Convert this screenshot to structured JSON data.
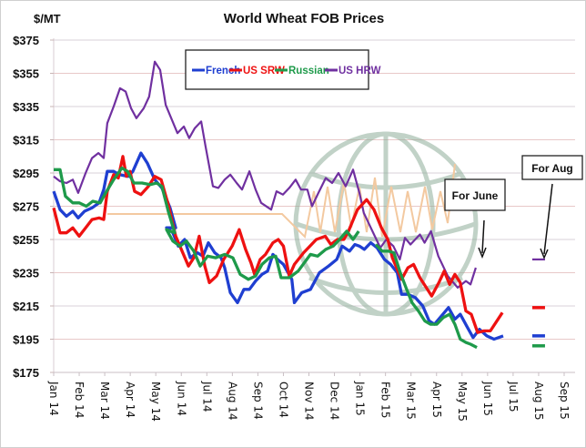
{
  "chart_data": {
    "type": "line",
    "title": "World Wheat FOB Prices",
    "ylabel": "$/MT",
    "xlabel": "",
    "ylim": [
      175,
      375
    ],
    "yticks": [
      175,
      195,
      215,
      235,
      255,
      275,
      295,
      315,
      335,
      355,
      375
    ],
    "ytick_labels": [
      "$175",
      "$195",
      "$215",
      "$235",
      "$255",
      "$275",
      "$295",
      "$315",
      "$335",
      "$355",
      "$375"
    ],
    "x_unit": "months since Jan 14",
    "xlim": [
      0,
      20
    ],
    "xtick_labels": [
      "Jan 14",
      "Feb 14",
      "Mar 14",
      "Apr 14",
      "May 14",
      "Jun 14",
      "Jul 14",
      "Aug 14",
      "Sep 14",
      "Oct 14",
      "Nov 14",
      "Dec 14",
      "Jan 15",
      "Feb 15",
      "Mar 15",
      "Apr 15",
      "May 15",
      "Jun 15",
      "Jul 15",
      "Aug 15",
      "Sep 15"
    ],
    "grid": true,
    "legend": {
      "placement": "top-center",
      "boxed": true
    },
    "series": [
      {
        "name": "French",
        "color": "#1f3fd1",
        "points": [
          [
            0,
            284
          ],
          [
            0.25,
            273
          ],
          [
            0.5,
            269
          ],
          [
            0.75,
            272
          ],
          [
            0.96,
            268
          ],
          [
            1.21,
            272
          ],
          [
            1.5,
            274
          ],
          [
            1.78,
            277
          ],
          [
            1.96,
            285
          ],
          [
            2.1,
            296
          ],
          [
            2.35,
            296
          ],
          [
            2.57,
            294
          ],
          [
            2.92,
            293
          ],
          [
            3.1,
            296
          ],
          [
            3.42,
            307
          ],
          [
            3.67,
            301
          ],
          [
            3.96,
            291
          ],
          [
            4.24,
            286
          ],
          [
            4.56,
            274
          ],
          [
            4.78,
            262
          ],
          [
            4.42,
            262
          ],
          [
            4.67,
            259
          ],
          [
            4.88,
            251
          ],
          [
            5.13,
            255
          ],
          [
            5.35,
            244
          ],
          [
            5.63,
            247
          ],
          [
            5.85,
            245
          ],
          [
            6.06,
            253
          ],
          [
            6.31,
            247
          ],
          [
            6.56,
            244
          ],
          [
            6.7,
            238
          ],
          [
            6.92,
            223
          ],
          [
            7.2,
            217
          ],
          [
            7.45,
            225
          ],
          [
            7.67,
            225
          ],
          [
            7.91,
            230
          ],
          [
            8.16,
            234
          ],
          [
            8.38,
            236
          ],
          [
            8.59,
            246
          ],
          [
            8.77,
            243
          ],
          [
            9.0,
            240
          ],
          [
            9.33,
            231
          ],
          [
            9.43,
            217
          ],
          [
            9.72,
            223
          ],
          [
            10.06,
            225
          ],
          [
            10.41,
            235
          ],
          [
            10.77,
            239
          ],
          [
            11.09,
            243
          ],
          [
            11.3,
            251
          ],
          [
            11.59,
            248
          ],
          [
            11.8,
            252
          ],
          [
            11.98,
            251
          ],
          [
            12.17,
            249
          ],
          [
            12.42,
            253
          ],
          [
            12.67,
            250
          ],
          [
            12.96,
            243
          ],
          [
            13.2,
            240
          ],
          [
            13.46,
            235
          ],
          [
            13.63,
            222
          ],
          [
            13.88,
            222
          ],
          [
            14.17,
            220
          ],
          [
            14.46,
            215
          ],
          [
            14.71,
            206
          ],
          [
            14.92,
            204
          ],
          [
            15.47,
            214
          ],
          [
            15.72,
            207
          ],
          [
            15.93,
            210
          ],
          [
            16.18,
            203
          ],
          [
            16.43,
            196
          ],
          [
            16.68,
            201
          ],
          [
            16.97,
            197
          ],
          [
            17.25,
            195
          ],
          [
            17.61,
            197
          ]
        ]
      },
      {
        "name": "US SRW",
        "color": "#ee1111",
        "points": [
          [
            0,
            274
          ],
          [
            0.25,
            259
          ],
          [
            0.5,
            259
          ],
          [
            0.75,
            262
          ],
          [
            1.0,
            257
          ],
          [
            1.25,
            262
          ],
          [
            1.5,
            267
          ],
          [
            1.78,
            268
          ],
          [
            1.96,
            267
          ],
          [
            2.1,
            284
          ],
          [
            2.35,
            294
          ],
          [
            2.53,
            292
          ],
          [
            2.71,
            305
          ],
          [
            2.85,
            293
          ],
          [
            2.99,
            296
          ],
          [
            3.17,
            284
          ],
          [
            3.42,
            282
          ],
          [
            3.71,
            287
          ],
          [
            3.96,
            293
          ],
          [
            4.21,
            291
          ],
          [
            4.49,
            276
          ],
          [
            4.78,
            257
          ],
          [
            5.03,
            248
          ],
          [
            5.28,
            239
          ],
          [
            5.49,
            244
          ],
          [
            5.7,
            257
          ],
          [
            5.92,
            239
          ],
          [
            6.1,
            229
          ],
          [
            6.38,
            233
          ],
          [
            6.66,
            243
          ],
          [
            6.99,
            251
          ],
          [
            7.27,
            261
          ],
          [
            7.52,
            249
          ],
          [
            7.73,
            241
          ],
          [
            7.87,
            234
          ],
          [
            8.09,
            243
          ],
          [
            8.3,
            246
          ],
          [
            8.59,
            253
          ],
          [
            8.8,
            255
          ],
          [
            9.0,
            251
          ],
          [
            9.23,
            233
          ],
          [
            9.43,
            240
          ],
          [
            9.79,
            247
          ],
          [
            10.29,
            255
          ],
          [
            10.64,
            257
          ],
          [
            10.86,
            252
          ],
          [
            11.12,
            255
          ],
          [
            11.37,
            255
          ],
          [
            11.55,
            260
          ],
          [
            11.9,
            273
          ],
          [
            12.26,
            279
          ],
          [
            12.55,
            273
          ],
          [
            12.84,
            262
          ],
          [
            13.09,
            255
          ],
          [
            13.27,
            244
          ],
          [
            13.63,
            231
          ],
          [
            13.88,
            238
          ],
          [
            14.1,
            240
          ],
          [
            14.35,
            232
          ],
          [
            14.6,
            226
          ],
          [
            14.81,
            221
          ],
          [
            15.09,
            229
          ],
          [
            15.3,
            236
          ],
          [
            15.51,
            228
          ],
          [
            15.72,
            234
          ],
          [
            15.93,
            229
          ],
          [
            16.15,
            212
          ],
          [
            16.36,
            210
          ],
          [
            16.61,
            199
          ],
          [
            16.86,
            200
          ],
          [
            17.11,
            200
          ],
          [
            17.58,
            211
          ]
        ]
      },
      {
        "name": "Russian",
        "color": "#1e9a4a",
        "points": [
          [
            0,
            297
          ],
          [
            0.25,
            297
          ],
          [
            0.46,
            281
          ],
          [
            0.75,
            277
          ],
          [
            1.0,
            277
          ],
          [
            1.28,
            275
          ],
          [
            1.53,
            278
          ],
          [
            1.82,
            277
          ],
          [
            2.07,
            284
          ],
          [
            2.35,
            291
          ],
          [
            2.67,
            298
          ],
          [
            2.89,
            296
          ],
          [
            3.14,
            289
          ],
          [
            3.46,
            289
          ],
          [
            3.78,
            288
          ],
          [
            4.03,
            289
          ],
          [
            4.24,
            287
          ],
          [
            4.49,
            272
          ],
          [
            4.74,
            259
          ],
          [
            4.42,
            261
          ],
          [
            4.67,
            254
          ],
          [
            4.95,
            251
          ],
          [
            5.2,
            254
          ],
          [
            5.49,
            248
          ],
          [
            5.74,
            239
          ],
          [
            6.03,
            245
          ],
          [
            6.35,
            244
          ],
          [
            6.7,
            246
          ],
          [
            7.02,
            244
          ],
          [
            7.31,
            234
          ],
          [
            7.63,
            231
          ],
          [
            7.91,
            233
          ],
          [
            8.16,
            240
          ],
          [
            8.45,
            244
          ],
          [
            8.7,
            245
          ],
          [
            8.91,
            232
          ],
          [
            9.23,
            232
          ],
          [
            9.58,
            236
          ],
          [
            10.06,
            246
          ],
          [
            10.34,
            245
          ],
          [
            10.66,
            249
          ],
          [
            10.95,
            251
          ],
          [
            11.2,
            255
          ],
          [
            11.48,
            260
          ],
          [
            11.73,
            255
          ],
          [
            11.95,
            260
          ]
        ],
        "points_b": [
          [
            12.62,
            252
          ],
          [
            12.87,
            248
          ],
          [
            13.12,
            248
          ],
          [
            13.33,
            247
          ],
          [
            13.58,
            235
          ],
          [
            13.83,
            225
          ],
          [
            14.04,
            217
          ],
          [
            14.29,
            212
          ],
          [
            14.54,
            206
          ],
          [
            14.76,
            204
          ],
          [
            15.01,
            204
          ],
          [
            15.26,
            208
          ],
          [
            15.51,
            210
          ],
          [
            15.72,
            204
          ],
          [
            15.93,
            195
          ],
          [
            16.15,
            193
          ],
          [
            16.33,
            192
          ],
          [
            16.58,
            190
          ]
        ]
      },
      {
        "name": "US HRW",
        "color": "#7030a0",
        "points": [
          [
            0,
            293
          ],
          [
            0.25,
            290
          ],
          [
            0.5,
            289
          ],
          [
            0.75,
            291
          ],
          [
            0.96,
            283
          ],
          [
            1.25,
            295
          ],
          [
            1.5,
            304
          ],
          [
            1.75,
            307
          ],
          [
            1.96,
            304
          ],
          [
            2.1,
            325
          ],
          [
            2.35,
            335
          ],
          [
            2.6,
            346
          ],
          [
            2.82,
            344
          ],
          [
            3.03,
            334
          ],
          [
            3.24,
            328
          ],
          [
            3.53,
            334
          ],
          [
            3.74,
            341
          ],
          [
            3.96,
            362
          ],
          [
            4.17,
            357
          ],
          [
            4.39,
            336
          ],
          [
            4.85,
            319
          ],
          [
            5.1,
            323
          ],
          [
            5.31,
            316
          ],
          [
            5.53,
            322
          ],
          [
            5.78,
            326
          ],
          [
            5.95,
            311
          ],
          [
            6.24,
            287
          ],
          [
            6.45,
            286
          ],
          [
            6.7,
            291
          ],
          [
            6.92,
            294
          ],
          [
            7.17,
            289
          ],
          [
            7.38,
            285
          ],
          [
            7.67,
            296
          ],
          [
            7.91,
            285
          ],
          [
            8.13,
            277
          ],
          [
            8.52,
            273
          ],
          [
            8.73,
            284
          ],
          [
            8.98,
            282
          ],
          [
            9.23,
            286
          ],
          [
            9.48,
            291
          ],
          [
            9.69,
            285
          ],
          [
            9.94,
            285
          ],
          [
            10.12,
            275
          ],
          [
            10.37,
            283
          ],
          [
            10.66,
            292
          ],
          [
            10.91,
            289
          ],
          [
            11.16,
            295
          ],
          [
            11.44,
            287
          ],
          [
            11.73,
            297
          ],
          [
            11.98,
            283
          ],
          [
            12.15,
            271
          ],
          [
            12.58,
            257
          ],
          [
            12.8,
            250
          ],
          [
            13.03,
            255
          ],
          [
            13.31,
            251
          ],
          [
            13.56,
            243
          ],
          [
            13.76,
            256
          ],
          [
            13.98,
            252
          ],
          [
            14.35,
            258
          ],
          [
            14.53,
            253
          ],
          [
            14.78,
            260
          ],
          [
            15.07,
            245
          ],
          [
            15.44,
            233
          ],
          [
            15.83,
            226
          ],
          [
            16.15,
            230
          ],
          [
            16.33,
            228
          ],
          [
            16.54,
            238
          ]
        ]
      }
    ],
    "forward_markers": {
      "label": "For Aug",
      "month": 19.0,
      "values": {
        "US HRW": 243,
        "US SRW": 214,
        "French": 197,
        "Russian": 191
      }
    },
    "annotations": [
      {
        "text": "For June",
        "points_to_month": 16.6
      },
      {
        "text": "For Aug",
        "points_to_month": 19.0
      }
    ]
  },
  "ui": {
    "legend_items": [
      "French",
      "US SRW",
      "Russian",
      "US HRW"
    ]
  }
}
